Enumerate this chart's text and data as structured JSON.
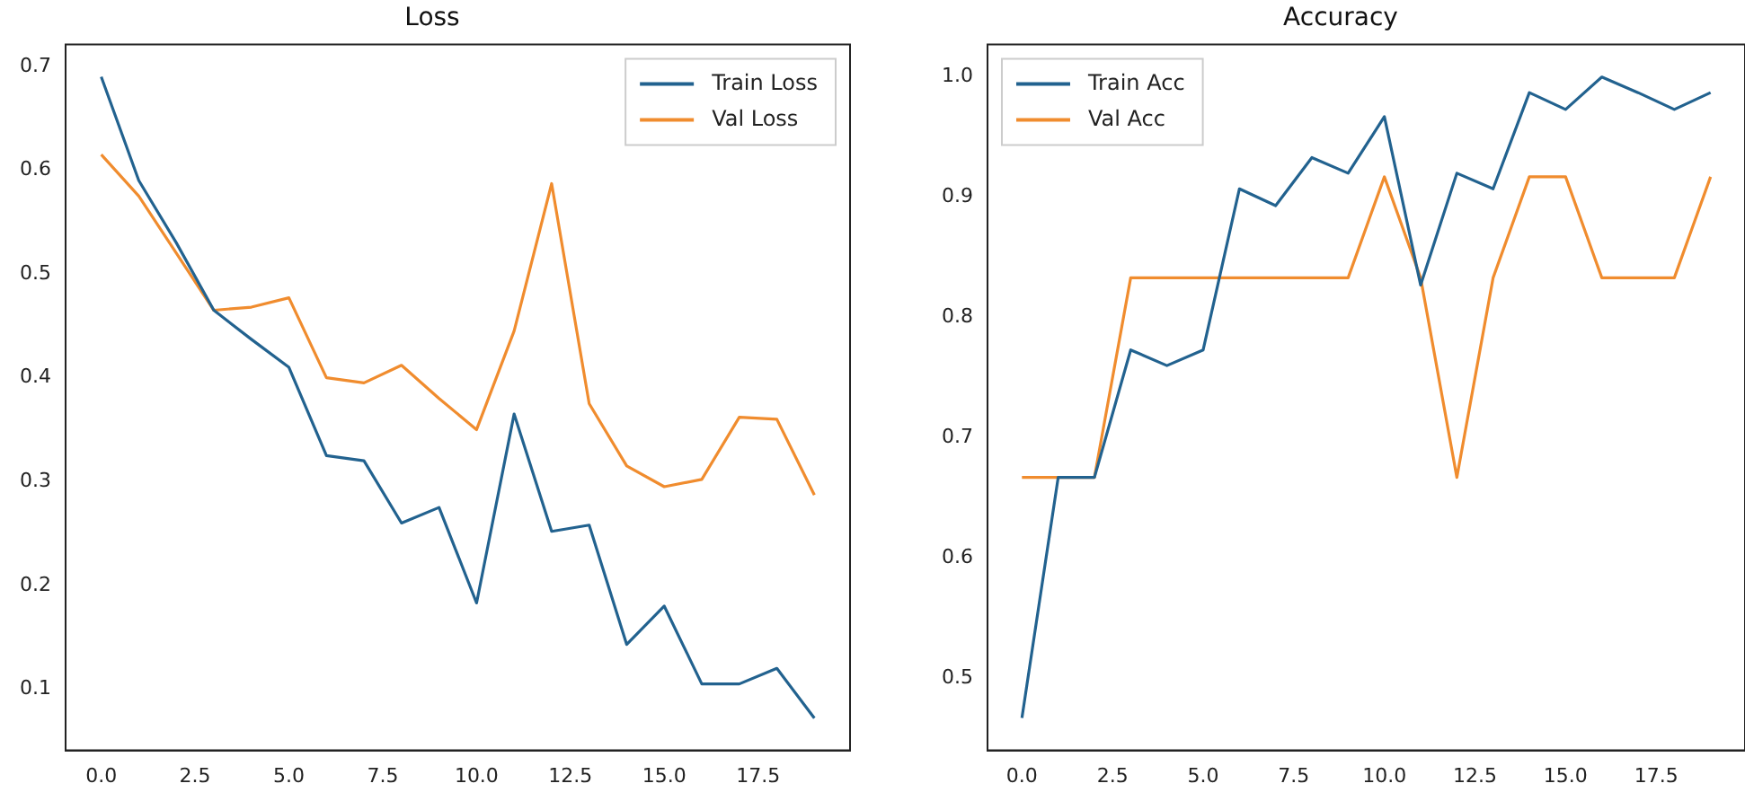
{
  "chart_data": [
    {
      "type": "line",
      "title": "Loss",
      "x": [
        0,
        1,
        2,
        3,
        4,
        5,
        6,
        7,
        8,
        9,
        10,
        11,
        12,
        13,
        14,
        15,
        16,
        17,
        18,
        19
      ],
      "series": [
        {
          "name": "Train Loss",
          "color": "#22628f",
          "values": [
            0.69,
            0.59,
            0.53,
            0.465,
            0.437,
            0.41,
            0.325,
            0.32,
            0.26,
            0.275,
            0.183,
            0.365,
            0.252,
            0.258,
            0.143,
            0.18,
            0.105,
            0.105,
            0.12,
            0.072
          ]
        },
        {
          "name": "Val Loss",
          "color": "#f08c2e",
          "values": [
            0.615,
            0.575,
            0.52,
            0.465,
            0.468,
            0.477,
            0.4,
            0.395,
            0.412,
            0.38,
            0.35,
            0.445,
            0.587,
            0.375,
            0.315,
            0.295,
            0.302,
            0.362,
            0.36,
            0.287
          ]
        }
      ],
      "xlim": [
        -0.95,
        19.95
      ],
      "xticks": [
        {
          "value": 0,
          "label": "0.0"
        },
        {
          "value": 2.5,
          "label": "2.5"
        },
        {
          "value": 5,
          "label": "5.0"
        },
        {
          "value": 7.5,
          "label": "7.5"
        },
        {
          "value": 10,
          "label": "10.0"
        },
        {
          "value": 12.5,
          "label": "12.5"
        },
        {
          "value": 15,
          "label": "15.0"
        },
        {
          "value": 17.5,
          "label": "17.5"
        }
      ],
      "ylim": [
        0.041,
        0.721
      ],
      "yticks": [
        0.1,
        0.2,
        0.3,
        0.4,
        0.5,
        0.6,
        0.7
      ],
      "grid": false,
      "legend": "top right",
      "marker": "none",
      "line_style": "solid"
    },
    {
      "type": "line",
      "title": "Accuracy",
      "x": [
        0,
        1,
        2,
        3,
        4,
        5,
        6,
        7,
        8,
        9,
        10,
        11,
        12,
        13,
        14,
        15,
        16,
        17,
        18,
        19
      ],
      "series": [
        {
          "name": "Train Acc",
          "color": "#22628f",
          "values": [
            0.467,
            0.667,
            0.667,
            0.773,
            0.76,
            0.773,
            0.907,
            0.893,
            0.933,
            0.92,
            0.967,
            0.827,
            0.92,
            0.907,
            0.987,
            0.973,
            1.0,
            0.987,
            0.973,
            0.987
          ]
        },
        {
          "name": "Val Acc",
          "color": "#f08c2e",
          "values": [
            0.667,
            0.667,
            0.667,
            0.833,
            0.833,
            0.833,
            0.833,
            0.833,
            0.833,
            0.833,
            0.917,
            0.833,
            0.667,
            0.833,
            0.917,
            0.917,
            0.833,
            0.833,
            0.833,
            0.917
          ]
        }
      ],
      "xlim": [
        -0.95,
        19.95
      ],
      "xticks": [
        {
          "value": 0,
          "label": "0.0"
        },
        {
          "value": 2.5,
          "label": "2.5"
        },
        {
          "value": 5,
          "label": "5.0"
        },
        {
          "value": 7.5,
          "label": "7.5"
        },
        {
          "value": 10,
          "label": "10.0"
        },
        {
          "value": 12.5,
          "label": "12.5"
        },
        {
          "value": 15,
          "label": "15.0"
        },
        {
          "value": 17.5,
          "label": "17.5"
        }
      ],
      "ylim": [
        0.44,
        1.027
      ],
      "yticks": [
        0.5,
        0.6,
        0.7,
        0.8,
        0.9,
        {
          "value": 1.0,
          "label": "1.0"
        }
      ],
      "grid": false,
      "legend": "top left",
      "marker": "none",
      "line_style": "solid"
    }
  ]
}
